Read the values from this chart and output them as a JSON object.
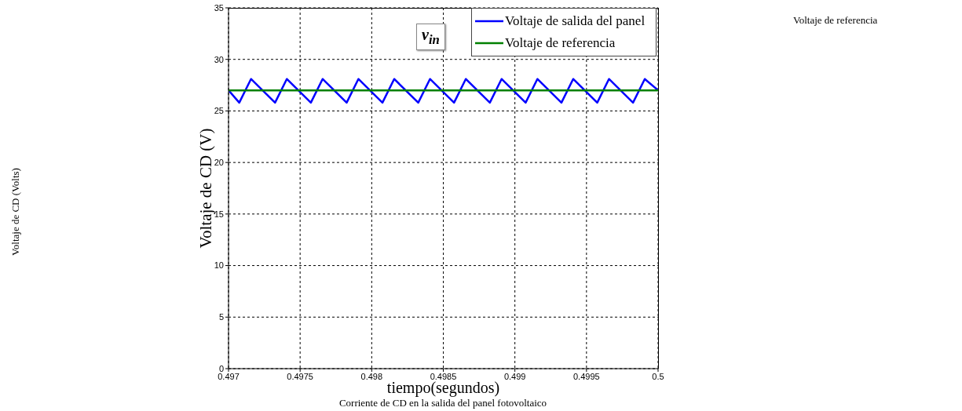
{
  "chart_data": {
    "type": "line",
    "xlabel": "tiempo(segundos)",
    "ylabel": "Voltaje de CD  (V)",
    "xlim": [
      0.497,
      0.5
    ],
    "xticks": [
      0.497,
      0.4975,
      0.498,
      0.4985,
      0.499,
      0.4995,
      0.5
    ],
    "ylim": [
      0,
      35
    ],
    "yticks": [
      0,
      5,
      10,
      15,
      20,
      25,
      30,
      35
    ],
    "grid": true,
    "legend": "top right",
    "marker": "none",
    "line_style": "solid",
    "series": [
      {
        "name": "Voltaje de salida del panel",
        "color": "#0000ff",
        "x": [
          0.497,
          0.497075,
          0.497157,
          0.497325,
          0.497407,
          0.497575,
          0.497657,
          0.497825,
          0.497907,
          0.498075,
          0.498157,
          0.498325,
          0.498407,
          0.498575,
          0.498657,
          0.498825,
          0.498907,
          0.499075,
          0.499157,
          0.499325,
          0.499407,
          0.499575,
          0.499657,
          0.499825,
          0.499907,
          0.5
        ],
        "values": [
          27.0,
          25.8,
          28.1,
          25.8,
          28.1,
          25.8,
          28.1,
          25.8,
          28.1,
          25.8,
          28.1,
          25.8,
          28.1,
          25.8,
          28.1,
          25.8,
          28.1,
          25.8,
          28.1,
          25.8,
          28.1,
          25.8,
          28.1,
          25.8,
          28.1,
          27.0
        ]
      },
      {
        "name": "Voltaje de referencia",
        "color": "#008000",
        "x": [
          0.497,
          0.5
        ],
        "values": [
          27,
          27
        ]
      }
    ],
    "annotations": [
      "v$_{in}$",
      "Voltaje de referencia",
      "Voltaje de CD  (Volts)",
      "Corriente de CD en la salida del panel fotovoltaico"
    ]
  }
}
